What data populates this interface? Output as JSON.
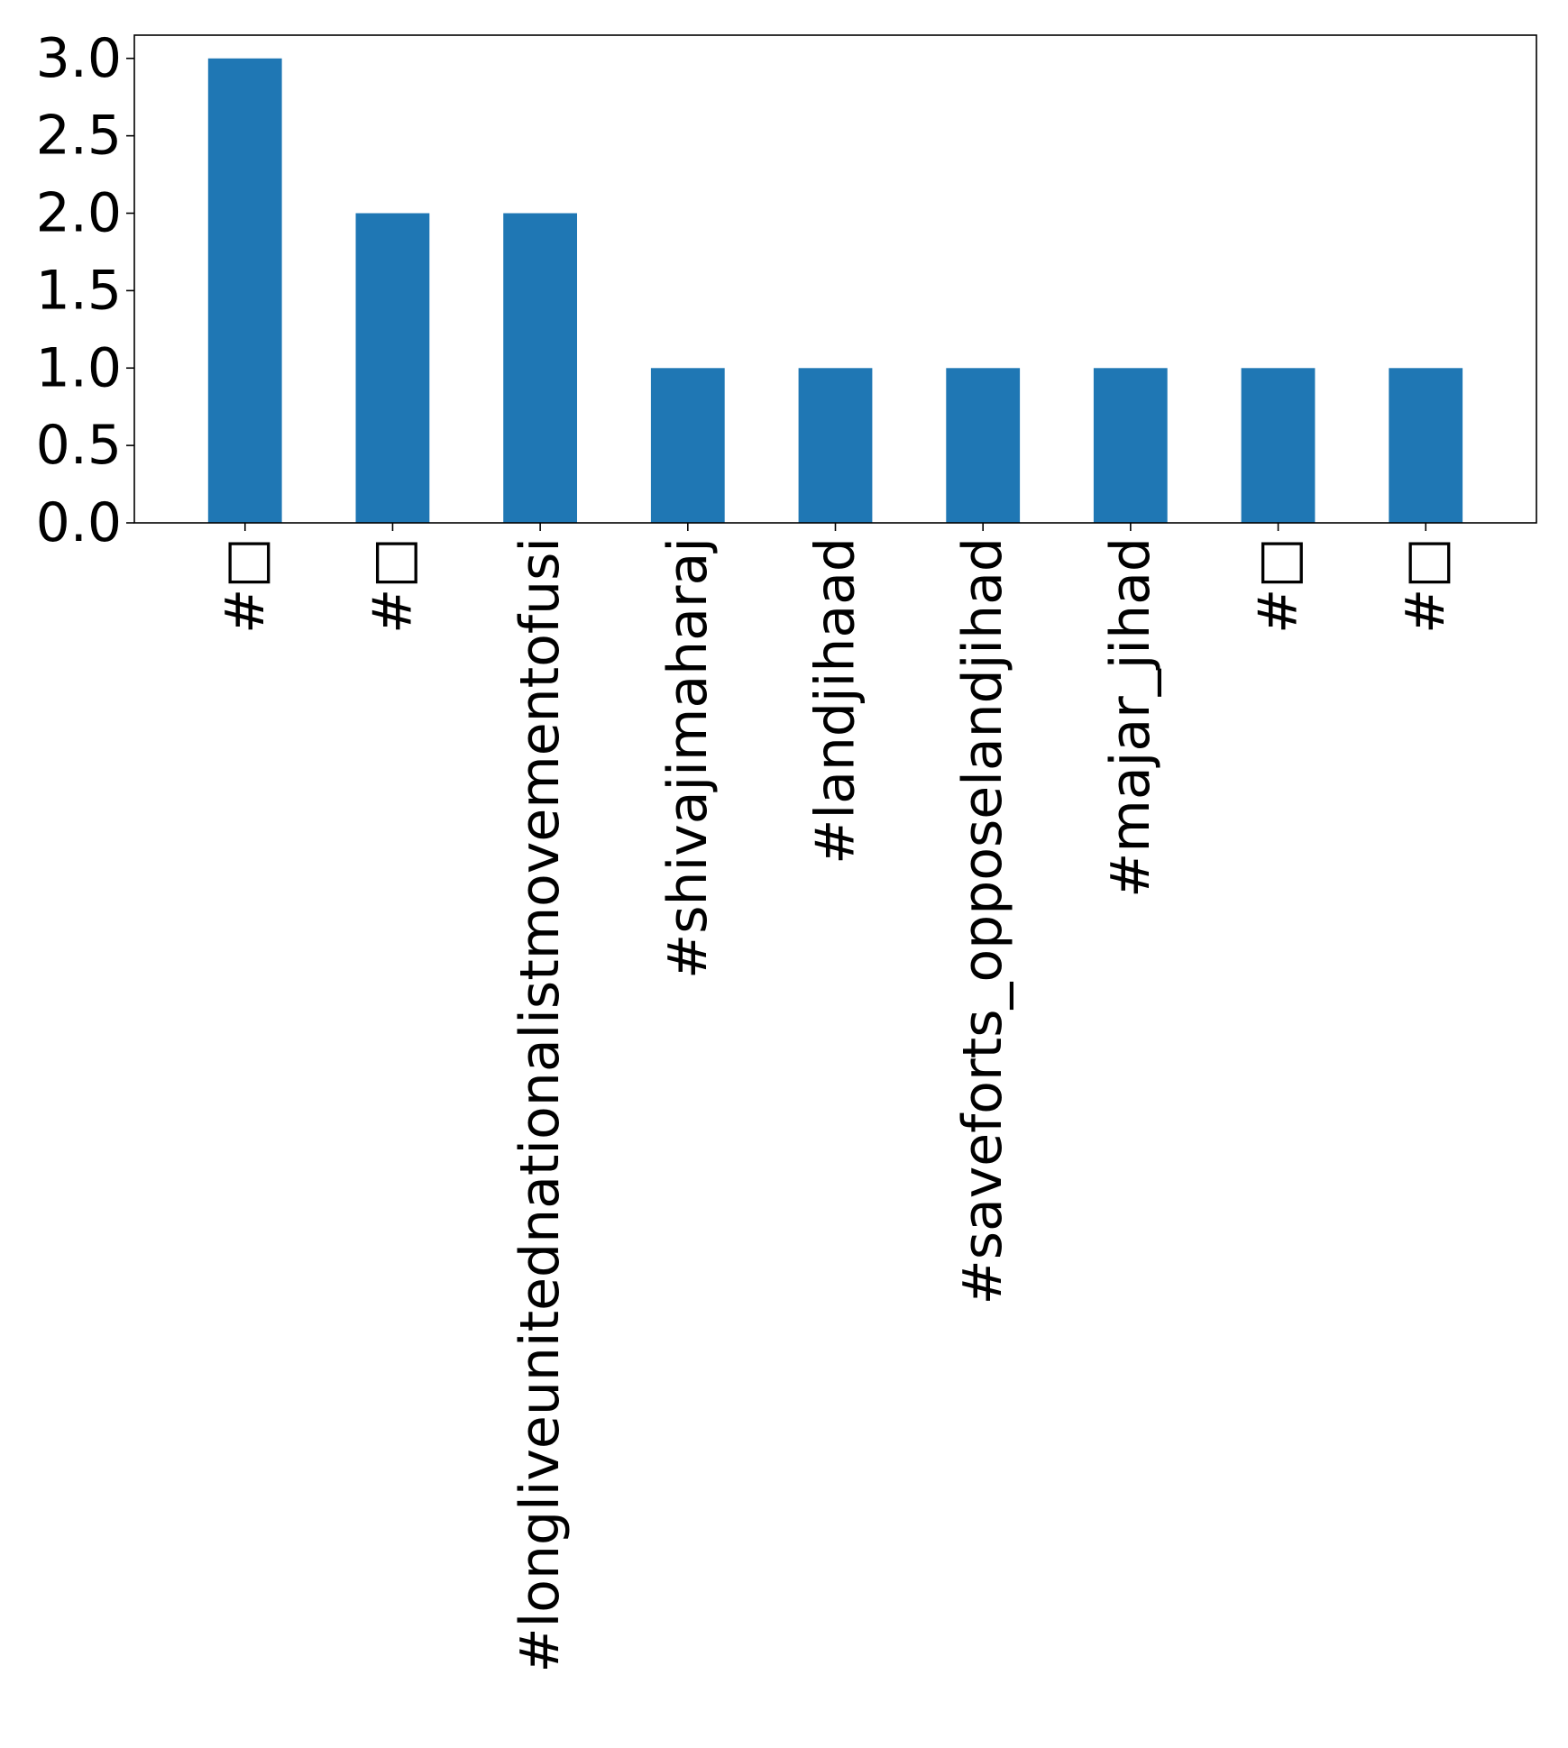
{
  "chart_data": {
    "type": "bar",
    "categories": [
      "#□",
      "#□",
      "#longliveunitednationalistmovementofusi",
      "#shivajimaharaj",
      "#landjihaad",
      "#saveforts_opposelandjihad",
      "#majar_jihad",
      "#□",
      "#□"
    ],
    "values": [
      3,
      2,
      2,
      1,
      1,
      1,
      1,
      1,
      1
    ],
    "title": "",
    "xlabel": "",
    "ylabel": "",
    "ylim": [
      0,
      3.15
    ],
    "yticks": [
      "0.0",
      "0.5",
      "1.0",
      "1.5",
      "2.0",
      "2.5",
      "3.0"
    ],
    "grid": false,
    "colors": {
      "bar": "#1f77b4",
      "axis": "#000000",
      "background": "#ffffff"
    }
  }
}
